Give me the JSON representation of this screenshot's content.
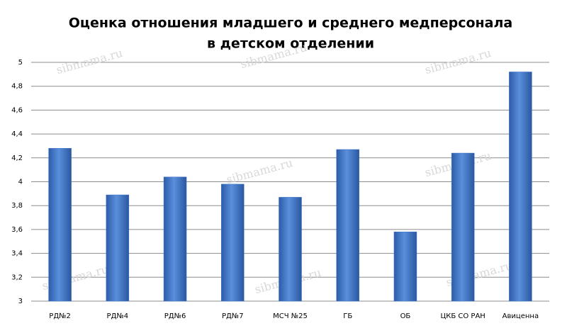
{
  "chart_data": {
    "type": "bar",
    "title": [
      "Оценка отношения младшего и среднего медперсонала",
      "в детском отделении"
    ],
    "watermark": "sibmama.ru",
    "categories": [
      "РД№2",
      "РД№4",
      "РД№6",
      "РД№7",
      "МСЧ №25",
      "ГБ",
      "ОБ",
      "ЦКБ СО РАН",
      "Авиценна"
    ],
    "values": [
      4.28,
      3.89,
      4.04,
      3.98,
      3.87,
      4.27,
      3.58,
      4.24,
      4.92
    ],
    "color": "#3f74c8",
    "ylim": [
      3,
      5
    ],
    "yticks": [
      3,
      {
        "value": 3.2,
        "label": "3,2"
      },
      {
        "value": 3.4,
        "label": "3,4"
      },
      {
        "value": 3.6,
        "label": "3,6"
      },
      {
        "value": 3.8,
        "label": "3,8"
      },
      4,
      {
        "value": 4.2,
        "label": "4,2"
      },
      {
        "value": 4.4,
        "label": "4,4"
      },
      {
        "value": 4.6,
        "label": "4,6"
      },
      {
        "value": 4.8,
        "label": "4,8"
      },
      5
    ],
    "grid": true
  }
}
